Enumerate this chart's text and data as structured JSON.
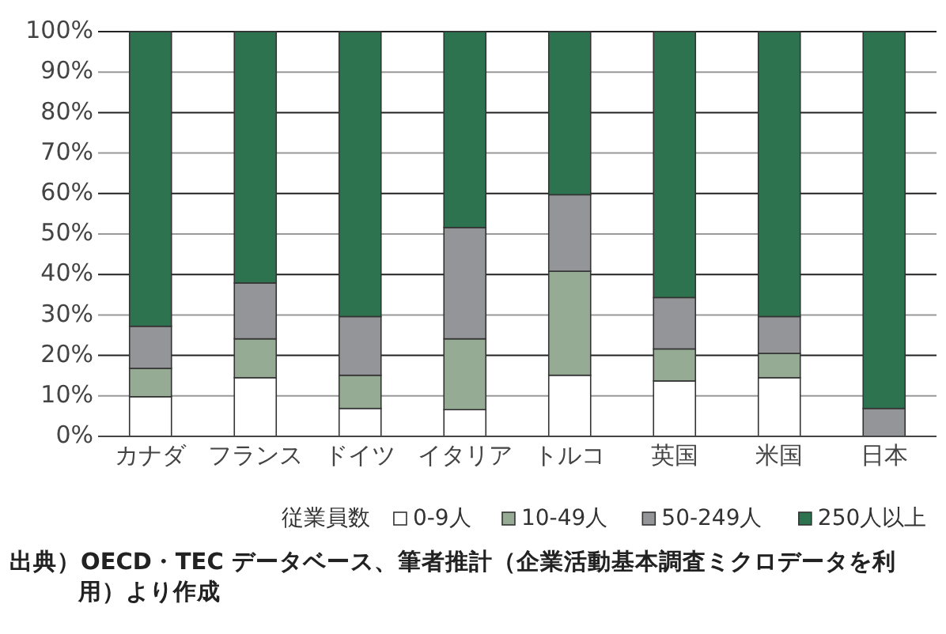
{
  "chart_data": {
    "type": "bar",
    "stacked": true,
    "categories": [
      "カナダ",
      "フランス",
      "ドイツ",
      "イタリア",
      "トルコ",
      "英国",
      "米国",
      "日本"
    ],
    "series": [
      {
        "name": "0-9人",
        "color": "#ffffff",
        "values": [
          9.8,
          14.5,
          6.9,
          6.6,
          15.1,
          13.7,
          14.5,
          0
        ]
      },
      {
        "name": "10-49人",
        "color": "#95ab94",
        "values": [
          7,
          9.6,
          8.2,
          17.5,
          25.7,
          7.9,
          6,
          0
        ]
      },
      {
        "name": "50-249人",
        "color": "#939598",
        "values": [
          10.4,
          13.8,
          14.5,
          27.5,
          18.9,
          12.7,
          9.1,
          6.9
        ]
      },
      {
        "name": "250人以上",
        "color": "#2e7350",
        "values": [
          72.8,
          62.1,
          70.4,
          48.4,
          40.3,
          65.7,
          70.4,
          93.1
        ]
      }
    ],
    "ylim": [
      0,
      100
    ],
    "yticks": [
      {
        "value": 0,
        "label": "0%"
      },
      {
        "value": 10,
        "label": "10%"
      },
      {
        "value": 20,
        "label": "20%"
      },
      {
        "value": 30,
        "label": "30%"
      },
      {
        "value": 40,
        "label": "40%"
      },
      {
        "value": 50,
        "label": "50%"
      },
      {
        "value": 60,
        "label": "60%"
      },
      {
        "value": 70,
        "label": "70%"
      },
      {
        "value": 80,
        "label": "80%"
      },
      {
        "value": 90,
        "label": "90%"
      },
      {
        "value": 100,
        "label": "100%"
      }
    ],
    "grid": "y",
    "legend": "bottom right",
    "legend_title": "従業員数",
    "annotations": [
      "出典）OECD・TEC データベース、筆者推計（企業活動基本調査ミクロデータを利用）より作成"
    ]
  }
}
